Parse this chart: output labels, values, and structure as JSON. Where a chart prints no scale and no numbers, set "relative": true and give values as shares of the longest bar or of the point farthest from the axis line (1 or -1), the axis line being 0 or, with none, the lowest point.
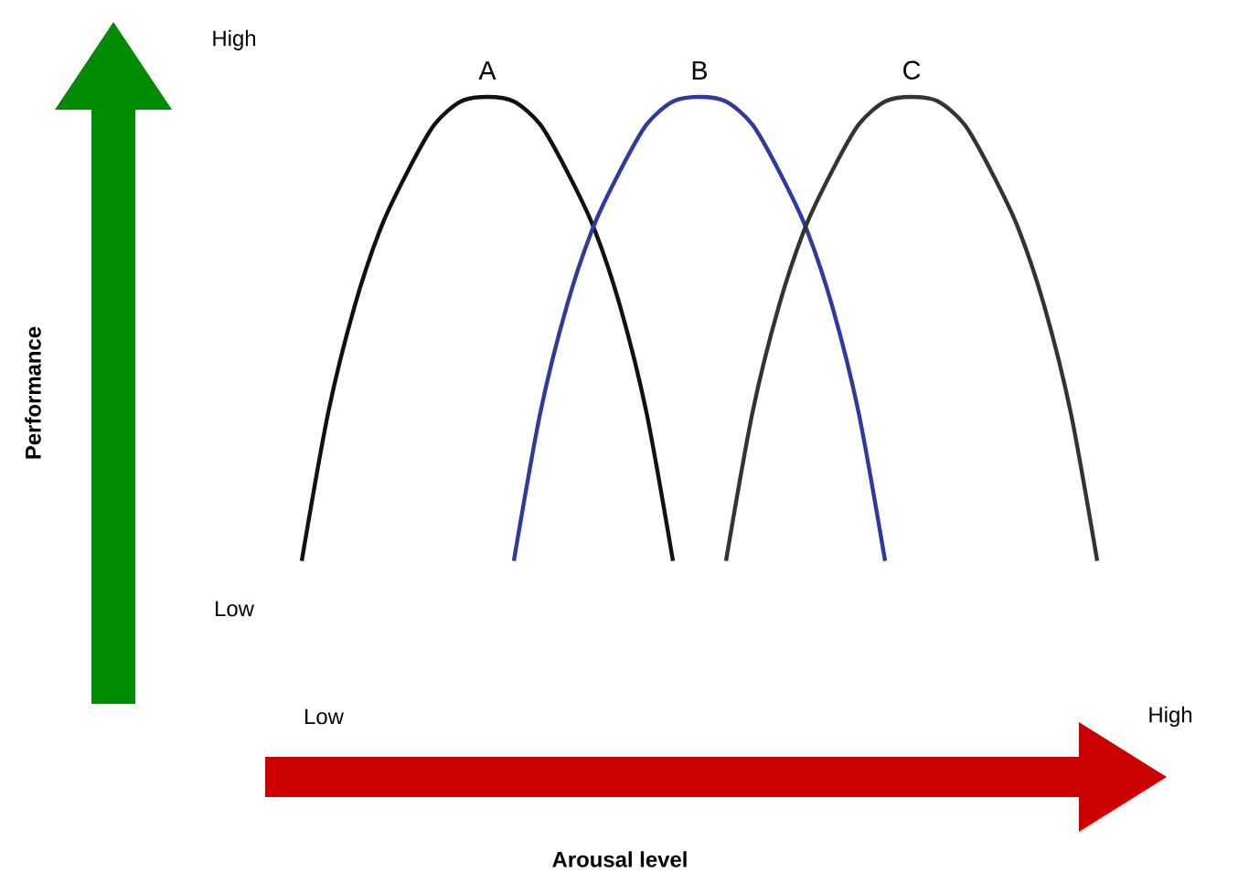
{
  "chart_data": {
    "type": "line",
    "relative": true,
    "annotations": [
      "High",
      "Low",
      "Low",
      "High",
      "Performance",
      "Arousal level"
    ],
    "categories": [
      null,
      null,
      null,
      null,
      null,
      null,
      null,
      null,
      null,
      null,
      null,
      null,
      null,
      null,
      null,
      null,
      null,
      null,
      null,
      null,
      null,
      null,
      null,
      null,
      null,
      null,
      null,
      null,
      null,
      null,
      null
    ],
    "series": [
      {
        "name": "A",
        "color": "#111111",
        "values": [
          0,
          0.32,
          0.55,
          0.72,
          0.84,
          0.94,
          0.99,
          1,
          0.99,
          0.94,
          0.84,
          0.72,
          0.55,
          0.32,
          0,
          null,
          null,
          null,
          null,
          null,
          null,
          null,
          null,
          null,
          null,
          null,
          null,
          null,
          null,
          null,
          null
        ]
      },
      {
        "name": "B",
        "color": "#2e3a9e",
        "values": [
          null,
          null,
          null,
          null,
          null,
          null,
          null,
          null,
          0,
          0.32,
          0.55,
          0.72,
          0.84,
          0.94,
          0.99,
          1,
          0.99,
          0.94,
          0.84,
          0.72,
          0.55,
          0.32,
          0,
          null,
          null,
          null,
          null,
          null,
          null,
          null,
          null
        ]
      },
      {
        "name": "C",
        "color": "#333333",
        "values": [
          null,
          null,
          null,
          null,
          null,
          null,
          null,
          null,
          null,
          null,
          null,
          null,
          null,
          null,
          null,
          null,
          0,
          0.32,
          0.55,
          0.72,
          0.84,
          0.94,
          0.99,
          1,
          0.99,
          0.94,
          0.84,
          0.72,
          0.55,
          0.32,
          0
        ]
      }
    ]
  }
}
